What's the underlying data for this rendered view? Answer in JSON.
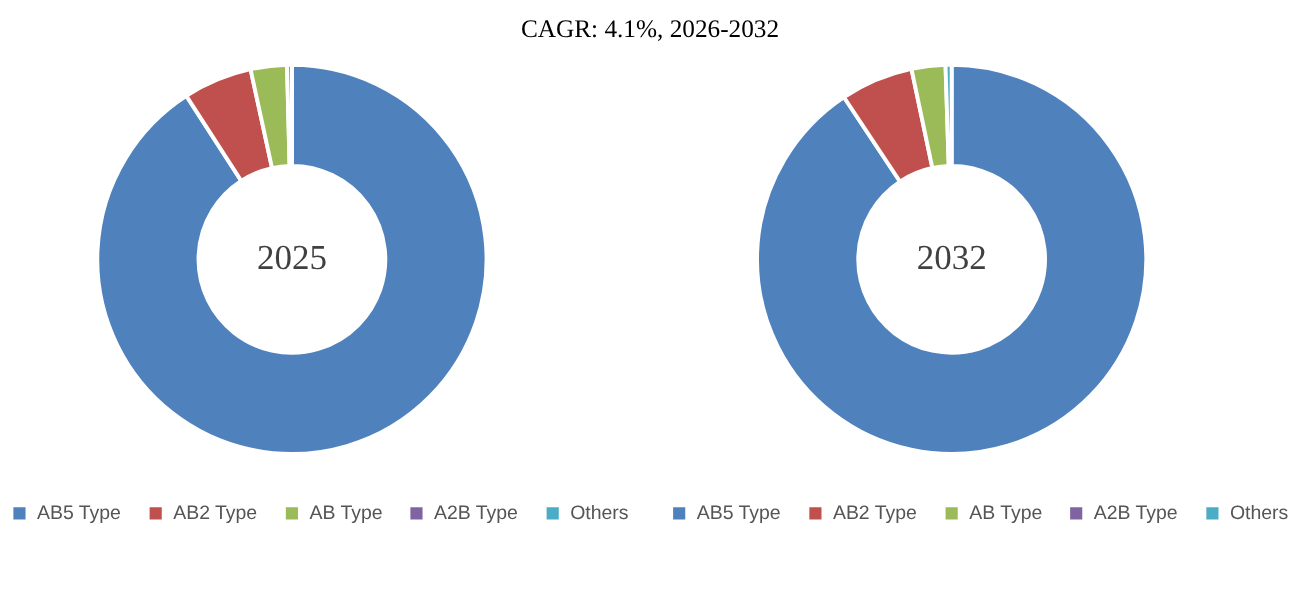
{
  "chart_data": [
    {
      "type": "donut",
      "title": "2025",
      "annotations": [
        "CAGR:   4.1%, 2026-2032"
      ],
      "categories": [
        "AB5 Type",
        "AB2 Type",
        "AB Type",
        "A2B Type",
        "Others"
      ],
      "values": [
        90.6,
        5.7,
        3.0,
        null,
        0.4
      ],
      "colors": [
        "#4f81bd",
        "#c0504d",
        "#9bbb59",
        "#8064a2",
        "#4bacc6"
      ],
      "legend": "bottom"
    },
    {
      "type": "donut",
      "title": "2032",
      "categories": [
        "AB5 Type",
        "AB2 Type",
        "AB Type",
        "A2B Type",
        "Others"
      ],
      "values": [
        90.4,
        6.0,
        2.8,
        null,
        0.5
      ],
      "colors": [
        "#4f81bd",
        "#c0504d",
        "#9bbb59",
        "#8064a2",
        "#4bacc6"
      ],
      "legend": "bottom"
    }
  ]
}
